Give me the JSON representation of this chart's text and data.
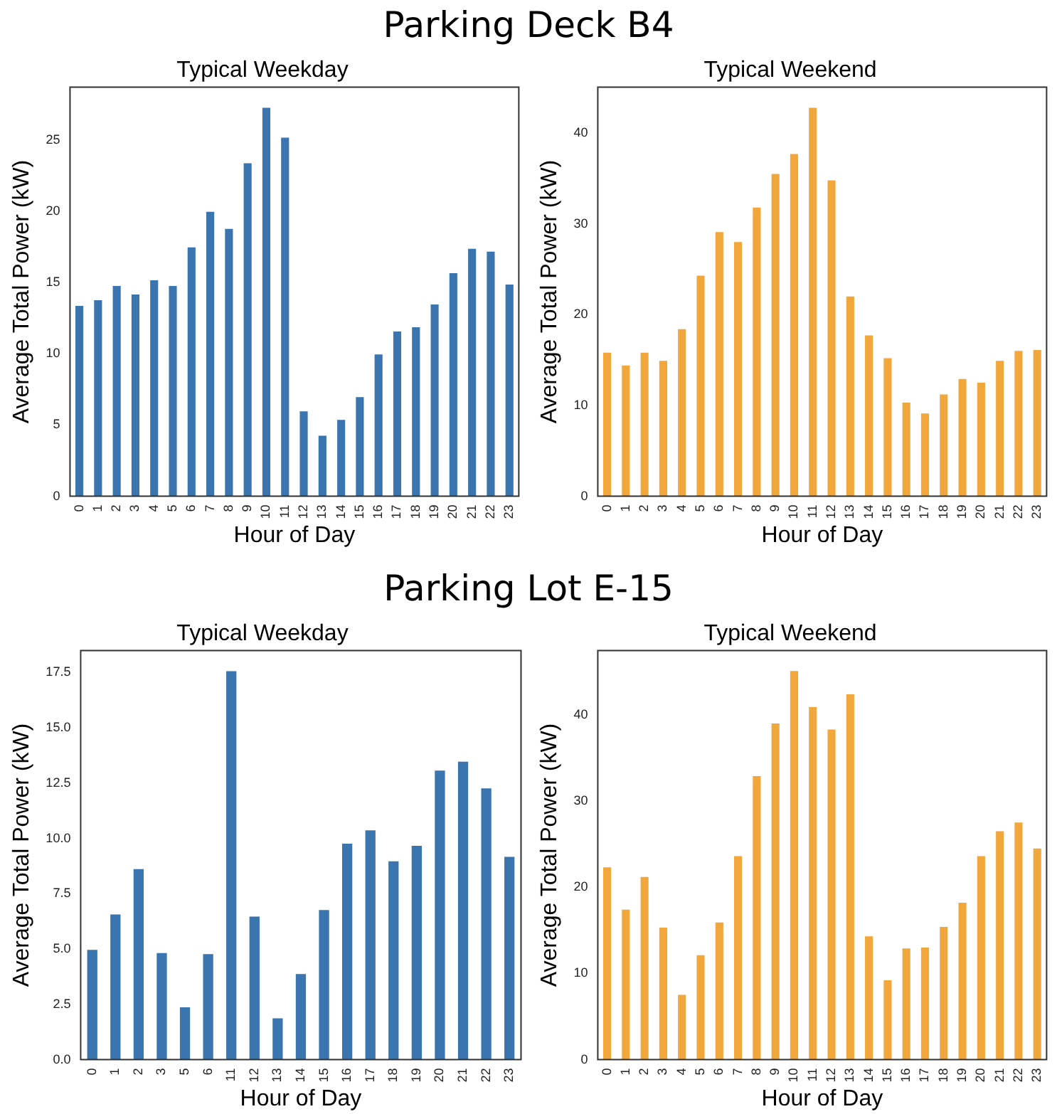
{
  "chart_data": [
    {
      "type": "other",
      "title": "Parking Deck B4"
    },
    {
      "type": "bar",
      "title": "Typical Weekday",
      "xlabel": "Hour of Day",
      "ylabel": "Average Total Power (kW)",
      "categories": [
        "0",
        "1",
        "2",
        "3",
        "4",
        "5",
        "6",
        "7",
        "8",
        "9",
        "10",
        "11",
        "12",
        "13",
        "14",
        "15",
        "16",
        "17",
        "18",
        "19",
        "20",
        "21",
        "22",
        "23"
      ],
      "values": [
        13.4,
        13.8,
        14.8,
        14.2,
        15.2,
        14.8,
        17.5,
        20.0,
        18.8,
        23.4,
        27.3,
        25.2,
        6.0,
        4.3,
        5.4,
        7.0,
        10.0,
        11.6,
        11.9,
        13.5,
        15.7,
        17.4,
        17.2,
        14.9
      ],
      "color": "#3b75af",
      "ylim": [
        0,
        28.7
      ],
      "yticks": [
        0,
        5,
        10,
        15,
        20,
        25
      ],
      "grid": false
    },
    {
      "type": "bar",
      "title": "Typical Weekend",
      "xlabel": "Hour of Day",
      "ylabel": "Average Total Power (kW)",
      "categories": [
        "0",
        "1",
        "2",
        "3",
        "4",
        "5",
        "6",
        "7",
        "8",
        "9",
        "10",
        "11",
        "12",
        "13",
        "14",
        "15",
        "16",
        "17",
        "18",
        "19",
        "20",
        "21",
        "22",
        "23"
      ],
      "values": [
        15.9,
        14.5,
        15.9,
        15.0,
        18.5,
        24.4,
        29.2,
        28.1,
        31.9,
        35.6,
        37.8,
        42.9,
        34.9,
        22.1,
        17.8,
        15.3,
        10.4,
        9.2,
        11.3,
        13.0,
        12.6,
        15.0,
        16.1,
        16.2
      ],
      "color": "#f1a73b",
      "ylim": [
        0,
        45.1
      ],
      "yticks": [
        0,
        10,
        20,
        30,
        40
      ],
      "grid": false
    },
    {
      "type": "other",
      "title": "Parking Lot E-15"
    },
    {
      "type": "bar",
      "title": "Typical Weekday",
      "xlabel": "Hour of Day",
      "ylabel": "Average Total Power (kW)",
      "categories": [
        "0",
        "1",
        "2",
        "3",
        "5",
        "6",
        "11",
        "12",
        "13",
        "14",
        "15",
        "16",
        "17",
        "18",
        "19",
        "20",
        "21",
        "22",
        "23"
      ],
      "values": [
        5.0,
        6.6,
        8.65,
        4.85,
        2.4,
        4.8,
        17.6,
        6.5,
        1.9,
        3.9,
        6.8,
        9.8,
        10.4,
        9.0,
        9.7,
        13.1,
        13.5,
        12.3,
        9.2
      ],
      "color": "#3b75af",
      "ylim": [
        0,
        18.5
      ],
      "yticks": [
        {
          "value": 0,
          "label": "0.0"
        },
        2.5,
        {
          "value": 5,
          "label": "5.0"
        },
        7.5,
        {
          "value": 10,
          "label": "10.0"
        },
        12.5,
        {
          "value": 15,
          "label": "15.0"
        },
        17.5
      ],
      "grid": false
    },
    {
      "type": "bar",
      "title": "Typical Weekend",
      "xlabel": "Hour of Day",
      "ylabel": "Average Total Power (kW)",
      "categories": [
        "0",
        "1",
        "2",
        "3",
        "4",
        "5",
        "6",
        "7",
        "8",
        "9",
        "10",
        "11",
        "12",
        "13",
        "14",
        "15",
        "16",
        "17",
        "18",
        "19",
        "20",
        "21",
        "22",
        "23"
      ],
      "values": [
        22.4,
        17.5,
        21.3,
        15.4,
        7.6,
        12.2,
        16.0,
        23.7,
        33.0,
        39.1,
        45.2,
        41.0,
        38.4,
        42.5,
        14.4,
        9.3,
        13.0,
        13.1,
        15.5,
        18.3,
        23.7,
        26.6,
        27.6,
        24.6
      ],
      "color": "#f1a73b",
      "ylim": [
        0,
        47.5
      ],
      "yticks": [
        0,
        10,
        20,
        30,
        40
      ],
      "grid": false
    }
  ]
}
